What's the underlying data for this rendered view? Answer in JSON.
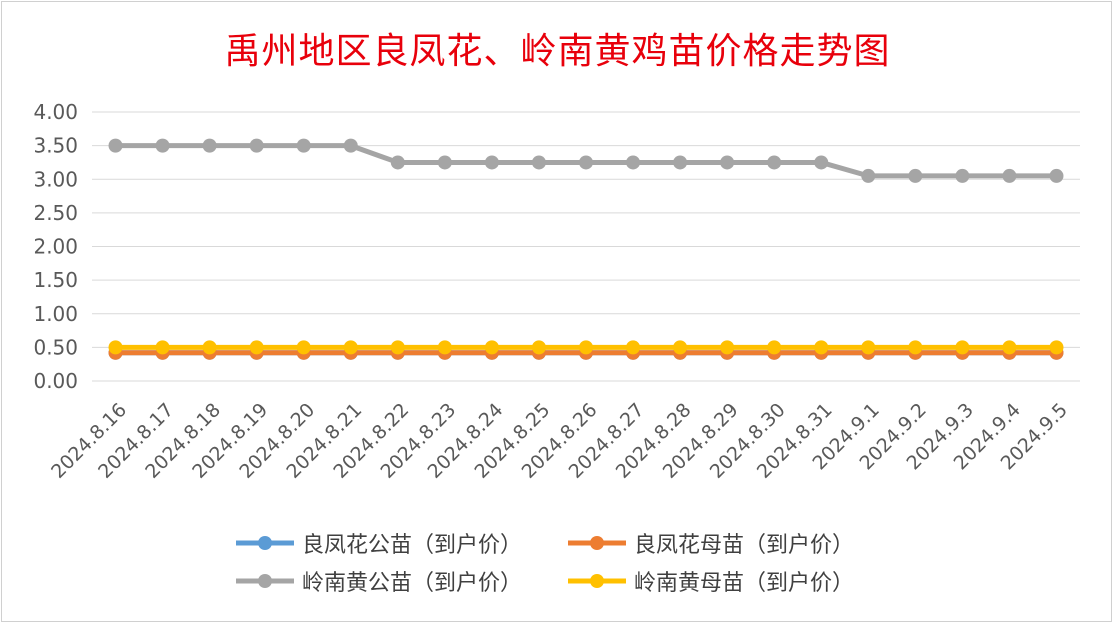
{
  "chart_data": {
    "type": "line",
    "title": "禹州地区良凤花、岭南黄鸡苗价格走势图",
    "categories": [
      "2024.8.16",
      "2024.8.17",
      "2024.8.18",
      "2024.8.19",
      "2024.8.20",
      "2024.8.21",
      "2024.8.22",
      "2024.8.23",
      "2024.8.24",
      "2024.8.25",
      "2024.8.26",
      "2024.8.27",
      "2024.8.28",
      "2024.8.29",
      "2024.8.30",
      "2024.8.31",
      "2024.9.1",
      "2024.9.2",
      "2024.9.3",
      "2024.9.4",
      "2024.9.5"
    ],
    "ylim": [
      0,
      4
    ],
    "yticks": [
      "0.00",
      "0.50",
      "1.00",
      "1.50",
      "2.00",
      "2.50",
      "3.00",
      "3.50",
      "4.00"
    ],
    "grid": true,
    "legend_position": "bottom",
    "series": [
      {
        "name": "良凤花公苗（到户价）",
        "color": "#5b9bd5",
        "values": [
          0.42,
          0.42,
          0.42,
          0.42,
          0.42,
          0.42,
          0.42,
          0.42,
          0.42,
          0.42,
          0.42,
          0.42,
          0.42,
          0.42,
          0.42,
          0.42,
          0.42,
          0.42,
          0.42,
          0.42,
          0.42
        ]
      },
      {
        "name": "良凤花母苗（到户价）",
        "color": "#ed7d31",
        "values": [
          0.42,
          0.42,
          0.42,
          0.42,
          0.42,
          0.42,
          0.42,
          0.42,
          0.42,
          0.42,
          0.42,
          0.42,
          0.42,
          0.42,
          0.42,
          0.42,
          0.42,
          0.42,
          0.42,
          0.42,
          0.42
        ]
      },
      {
        "name": "岭南黄公苗（到户价）",
        "color": "#a5a5a5",
        "values": [
          3.5,
          3.5,
          3.5,
          3.5,
          3.5,
          3.5,
          3.25,
          3.25,
          3.25,
          3.25,
          3.25,
          3.25,
          3.25,
          3.25,
          3.25,
          3.25,
          3.05,
          3.05,
          3.05,
          3.05,
          3.05
        ]
      },
      {
        "name": "岭南黄母苗（到户价）",
        "color": "#ffc000",
        "values": [
          0.5,
          0.5,
          0.5,
          0.5,
          0.5,
          0.5,
          0.5,
          0.5,
          0.5,
          0.5,
          0.5,
          0.5,
          0.5,
          0.5,
          0.5,
          0.5,
          0.5,
          0.5,
          0.5,
          0.5,
          0.5
        ]
      }
    ]
  }
}
